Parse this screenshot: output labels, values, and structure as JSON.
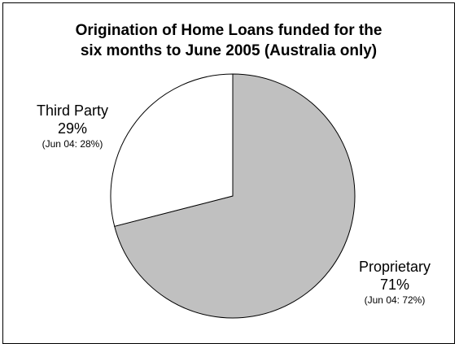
{
  "chart_data": {
    "type": "pie",
    "title_line1": "Origination of Home Loans funded for the",
    "title_line2": "six months to June 2005 (Australia only)",
    "slices": [
      {
        "label": "Third Party",
        "value": 29,
        "value_text": "29%",
        "prior": "(Jun 04: 28%)",
        "color": "#ffffff"
      },
      {
        "label": "Proprietary",
        "value": 71,
        "value_text": "71%",
        "prior": "(Jun 04: 72%)",
        "color": "#c0c0c0"
      }
    ]
  }
}
